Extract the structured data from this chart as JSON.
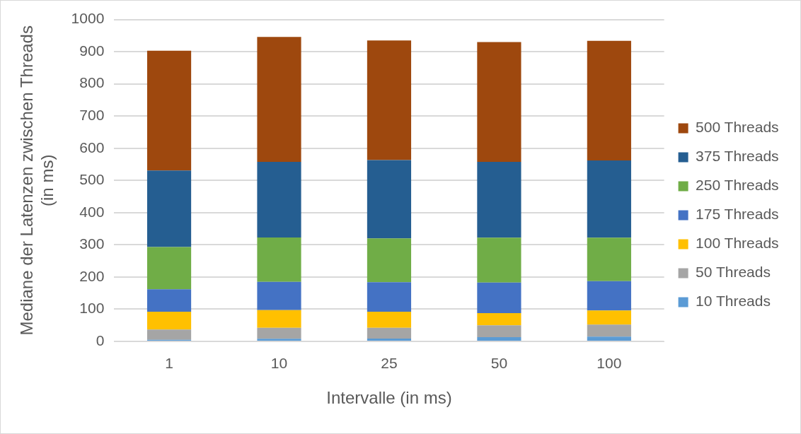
{
  "chart_data": {
    "type": "bar",
    "stacked": true,
    "xlabel": "Intervalle (in ms)",
    "ylabel": "Mediane der Latenzen zwischen Threads (in ms)",
    "categories": [
      "1",
      "10",
      "25",
      "50",
      "100"
    ],
    "series": [
      {
        "name": "10 Threads",
        "color": "#5b9bd5",
        "values": [
          5,
          8,
          9,
          13,
          15
        ]
      },
      {
        "name": "50 Threads",
        "color": "#a5a5a5",
        "values": [
          32,
          34,
          33,
          37,
          37
        ]
      },
      {
        "name": "100 Threads",
        "color": "#ffc000",
        "values": [
          55,
          55,
          50,
          38,
          44
        ]
      },
      {
        "name": "175 Threads",
        "color": "#4472c4",
        "values": [
          70,
          88,
          92,
          95,
          91
        ]
      },
      {
        "name": "250 Threads",
        "color": "#70ad47",
        "values": [
          131,
          138,
          136,
          139,
          135
        ]
      },
      {
        "name": "375 Threads",
        "color": "#255e91",
        "values": [
          238,
          235,
          243,
          236,
          240
        ]
      },
      {
        "name": "500 Threads",
        "color": "#9e480e",
        "values": [
          372,
          388,
          372,
          372,
          372
        ]
      }
    ],
    "ylim": [
      0,
      1000
    ],
    "yticks": [
      0,
      100,
      200,
      300,
      400,
      500,
      600,
      700,
      800,
      900,
      1000
    ],
    "grid": "y",
    "legend": "right"
  }
}
